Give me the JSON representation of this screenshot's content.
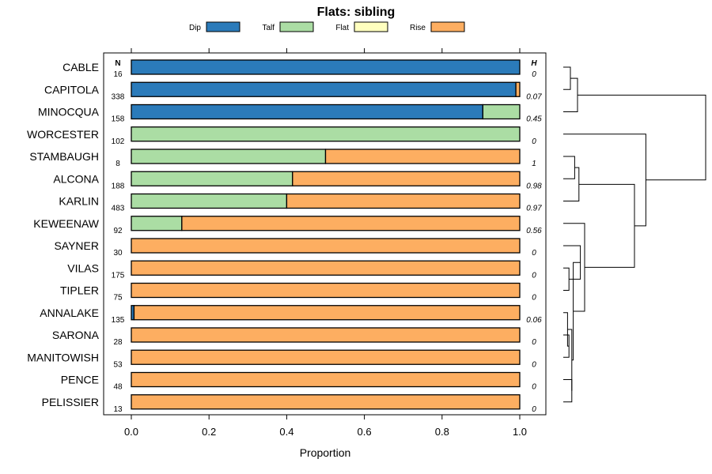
{
  "chart_data": {
    "type": "bar",
    "orientation": "horizontal-stacked",
    "title": "Flats: sibling",
    "xlabel": "Proportion",
    "ylabel": "",
    "xlim": [
      0,
      1
    ],
    "x_ticks": [
      "0.0",
      "0.2",
      "0.4",
      "0.6",
      "0.8",
      "1.0"
    ],
    "x_tick_values": [
      0,
      0.2,
      0.4,
      0.6,
      0.8,
      1.0
    ],
    "n_header": "N",
    "h_header": "H",
    "legend": [
      {
        "name": "Dip",
        "color": "#2b7bba"
      },
      {
        "name": "Talf",
        "color": "#abdda4"
      },
      {
        "name": "Flat",
        "color": "#ffffbf"
      },
      {
        "name": "Rise",
        "color": "#fdae61"
      }
    ],
    "categories": [
      "CABLE",
      "CAPITOLA",
      "MINOCQUA",
      "WORCESTER",
      "STAMBAUGH",
      "ALCONA",
      "KARLIN",
      "KEWEENAW",
      "SAYNER",
      "VILAS",
      "TIPLER",
      "ANNALAKE",
      "SARONA",
      "MANITOWISH",
      "PENCE",
      "PELISSIER"
    ],
    "n": [
      "16",
      "338",
      "158",
      "102",
      "8",
      "188",
      "483",
      "92",
      "30",
      "175",
      "75",
      "135",
      "28",
      "53",
      "48",
      "13"
    ],
    "h": [
      "0",
      "0.07",
      "0.45",
      "0",
      "1",
      "0.98",
      "0.97",
      "0.56",
      "0",
      "0",
      "0",
      "0.06",
      "0",
      "0",
      "0",
      "0"
    ],
    "series": [
      {
        "name": "Dip",
        "values": [
          1.0,
          0.99,
          0.905,
          0,
          0,
          0,
          0,
          0,
          0,
          0,
          0,
          0.007,
          0,
          0,
          0,
          0
        ]
      },
      {
        "name": "Talf",
        "values": [
          0,
          0,
          0.095,
          1.0,
          0.5,
          0.415,
          0.4,
          0.13,
          0,
          0,
          0,
          0,
          0,
          0,
          0,
          0
        ]
      },
      {
        "name": "Flat",
        "values": [
          0,
          0,
          0,
          0,
          0,
          0,
          0,
          0,
          0,
          0,
          0,
          0,
          0,
          0,
          0,
          0
        ]
      },
      {
        "name": "Rise",
        "values": [
          0,
          0.01,
          0,
          0,
          0.5,
          0.585,
          0.6,
          0.87,
          1.0,
          1.0,
          1.0,
          0.993,
          1.0,
          1.0,
          1.0,
          1.0
        ]
      }
    ],
    "dendrogram": [
      {
        "a": 0,
        "b": 1,
        "height": 0.05
      },
      {
        "a": 4,
        "b": 5,
        "height": 0.08
      },
      {
        "a": 14,
        "b": 15,
        "height": 0.06
      },
      {
        "a": 12,
        "b": 13,
        "height": 0.04
      },
      {
        "a": 9,
        "b": 10,
        "height": 0.04
      },
      {
        "a": "n0",
        "b": 2,
        "height": 0.1
      },
      {
        "a": "n1",
        "b": 6,
        "height": 0.11
      },
      {
        "a": 11,
        "b": "n3",
        "height": 0.03
      },
      {
        "a": 8,
        "b": "n4",
        "height": 0.12
      },
      {
        "a": "n7",
        "b": "n2",
        "height": 0.06
      },
      {
        "a": "n8",
        "b": "n9",
        "height": 0.07
      },
      {
        "a": 7,
        "b": "n10",
        "height": 0.15
      },
      {
        "a": "n6",
        "b": "n11",
        "height": 0.5
      },
      {
        "a": 3,
        "b": "n12",
        "height": 0.58
      },
      {
        "a": "n5",
        "b": "n13",
        "height": 1.0
      }
    ]
  }
}
